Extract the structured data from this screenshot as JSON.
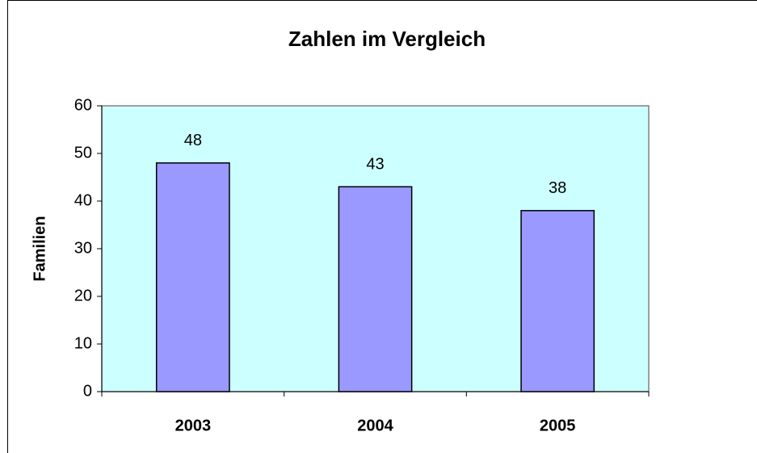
{
  "chart_data": {
    "type": "bar",
    "title": "Zahlen im Vergleich",
    "y_label": "Familien",
    "categories": [
      "2003",
      "2004",
      "2005"
    ],
    "values": [
      48,
      43,
      38
    ],
    "color": "#9999ff",
    "plot_background": "#ccffff",
    "ylim": [
      0,
      60
    ],
    "yticks": [
      0,
      10,
      20,
      30,
      40,
      50,
      60
    ],
    "grid": false
  }
}
